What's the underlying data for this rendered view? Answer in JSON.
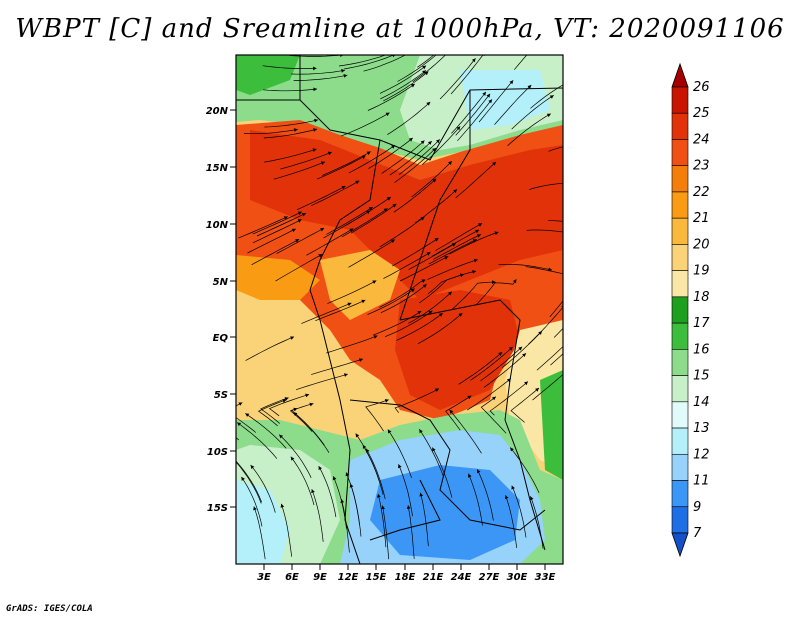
{
  "title": "WBPT [C] and Sreamline at 1000hPa, VT: 2020091106",
  "credit": "GrADS: IGES/COLA",
  "map": {
    "lat_labels": [
      "20N",
      "15N",
      "10N",
      "5N",
      "EQ",
      "5S",
      "10S",
      "15S"
    ],
    "lon_labels": [
      "3E",
      "6E",
      "9E",
      "12E",
      "15E",
      "18E",
      "21E",
      "24E",
      "27E",
      "30E",
      "33E"
    ]
  },
  "colorbar": {
    "levels": [
      "26",
      "25",
      "24",
      "23",
      "22",
      "21",
      "20",
      "19",
      "18",
      "17",
      "16",
      "15",
      "14",
      "13",
      "12",
      "11",
      "9",
      "7"
    ],
    "colors": [
      "#a50000",
      "#c81400",
      "#e1320a",
      "#f05014",
      "#f57d0a",
      "#fa9b14",
      "#fab93c",
      "#fad278",
      "#fae6a5",
      "#1ea01e",
      "#3cbe3c",
      "#8cdc8c",
      "#c8f0c8",
      "#e1fafa",
      "#b4f0fa",
      "#96d2fa",
      "#3c96f5",
      "#1e6ee6",
      "#1450c8"
    ]
  }
}
